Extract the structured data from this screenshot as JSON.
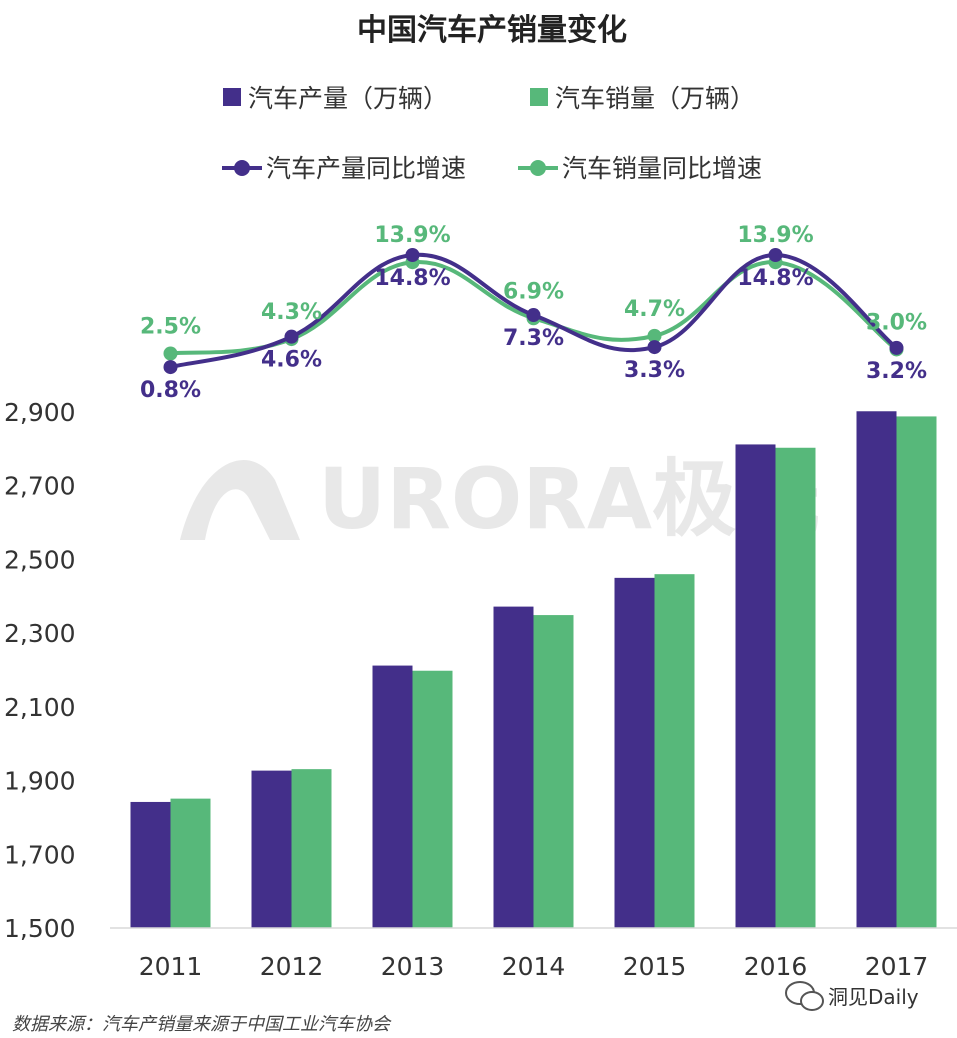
{
  "chart_data": {
    "type": "bar",
    "title": "中国汽车产销量变化",
    "categories": [
      "2011",
      "2012",
      "2013",
      "2014",
      "2015",
      "2016",
      "2017"
    ],
    "ylim": [
      1500,
      2900
    ],
    "yticks": [
      "1,500",
      "1,700",
      "1,900",
      "2,100",
      "2,300",
      "2,500",
      "2,700",
      "2,900"
    ],
    "series": [
      {
        "name": "汽车产量（万辆）",
        "color": "#432f8a",
        "values": [
          1842,
          1927,
          2212,
          2372,
          2450,
          2812,
          2902
        ]
      },
      {
        "name": "汽车销量（万辆）",
        "color": "#57b87a",
        "values": [
          1851,
          1931,
          2198,
          2349,
          2460,
          2803,
          2888
        ]
      }
    ],
    "lines": [
      {
        "name": "汽车产量同比增速",
        "color": "#432f8a",
        "values": [
          0.8,
          4.6,
          14.8,
          7.3,
          3.3,
          14.8,
          3.2
        ],
        "labels": [
          "0.8%",
          "4.6%",
          "14.8%",
          "7.3%",
          "3.3%",
          "14.8%",
          "3.2%"
        ]
      },
      {
        "name": "汽车销量同比增速",
        "color": "#57b87a",
        "values": [
          2.5,
          4.3,
          13.9,
          6.9,
          4.7,
          13.9,
          3.0
        ],
        "labels": [
          "2.5%",
          "4.3%",
          "13.9%",
          "6.9%",
          "4.7%",
          "13.9%",
          "3.0%"
        ]
      }
    ],
    "legend_position": "top",
    "grid": false
  },
  "watermark": "URORA极光",
  "note": "数据来源：汽车产销量来源于中国工业汽车协会",
  "brand": "洞见Daily",
  "brand_icon": "wechat-icon"
}
